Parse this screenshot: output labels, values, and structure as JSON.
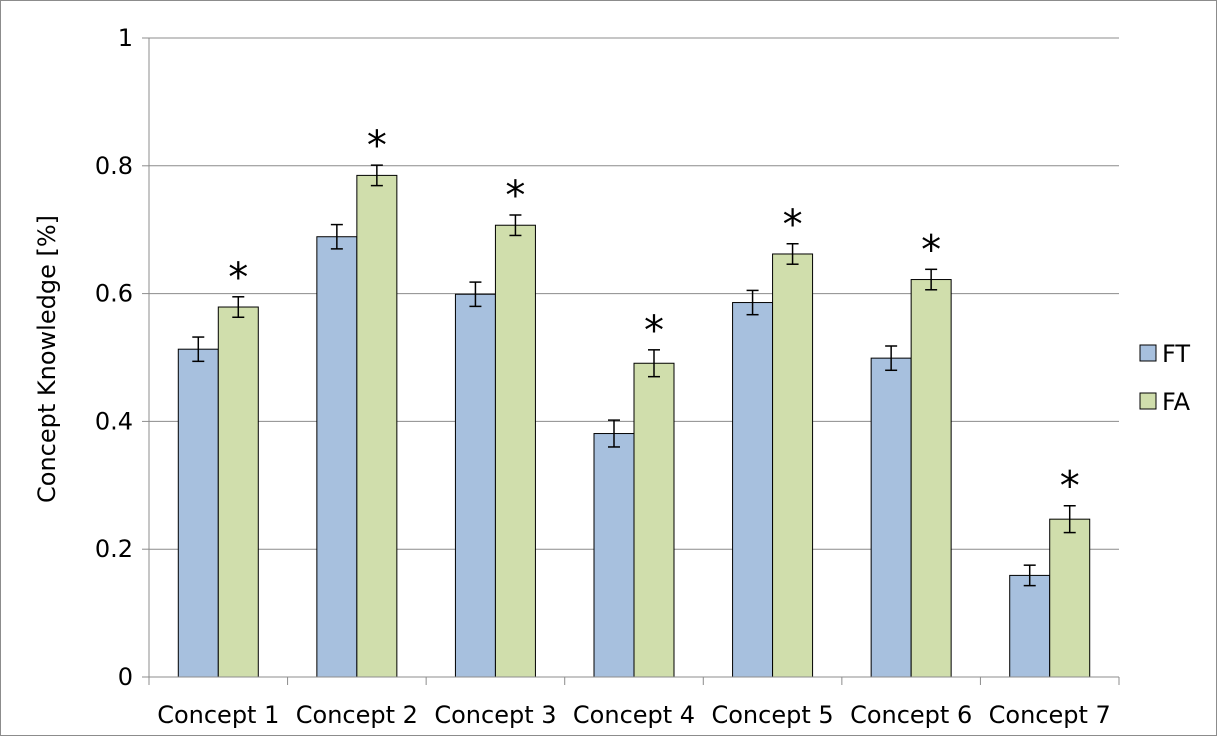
{
  "chart_data": {
    "type": "bar",
    "title": "",
    "xlabel": "",
    "ylabel": "Concept Knowledge [%]",
    "ylim": [
      0,
      1
    ],
    "yticks": [
      0,
      0.2,
      0.4,
      0.6,
      0.8,
      1
    ],
    "ytick_labels": [
      "0",
      "0.2",
      "0.4",
      "0.6",
      "0.8",
      "1"
    ],
    "grid": true,
    "legend_position": "right",
    "categories": [
      "Concept 1",
      "Concept 2",
      "Concept 3",
      "Concept 4",
      "Concept 5",
      "Concept 6",
      "Concept 7"
    ],
    "series": [
      {
        "name": "FT",
        "color": "#a7c0de",
        "values": [
          0.513,
          0.689,
          0.599,
          0.381,
          0.586,
          0.499,
          0.159
        ],
        "errors": [
          0.019,
          0.019,
          0.019,
          0.021,
          0.019,
          0.019,
          0.016
        ]
      },
      {
        "name": "FA",
        "color": "#d0deac",
        "values": [
          0.579,
          0.785,
          0.707,
          0.491,
          0.662,
          0.622,
          0.247
        ],
        "errors": [
          0.016,
          0.016,
          0.016,
          0.021,
          0.016,
          0.016,
          0.021
        ]
      }
    ],
    "significance_marker": "*",
    "significant": [
      true,
      true,
      true,
      true,
      true,
      true,
      true
    ]
  }
}
